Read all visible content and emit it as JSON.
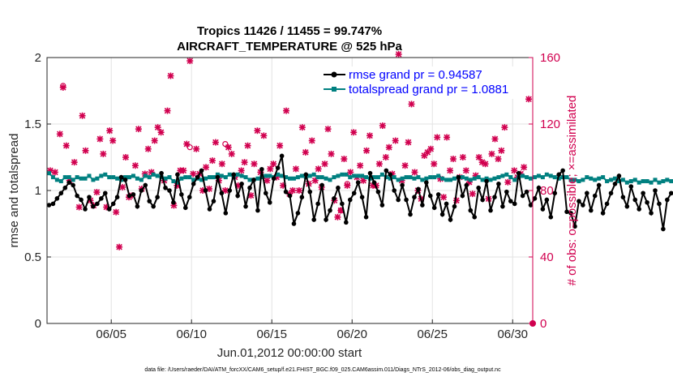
{
  "chart_data": {
    "type": "line",
    "title": "Tropics 11426 / 11455 = 99.747%",
    "subtitle": "AIRCRAFT_TEMPERATURE @ 525 hPa",
    "xlabel": "Jun.01,2012 00:00:00 start",
    "ylabel": "rmse and totalspread",
    "y2label": "# of obs: o=possible; ×=assimilated",
    "footnote": "data file: /Users/raeder/DAI/ATM_forcXX/CAM6_setup/f.e21.FHIST_BGC.f09_025.CAM6assim.011/Diags_NTrS_2012-06/obs_diag_output.nc",
    "xlim": [
      1.0,
      31.25
    ],
    "ylim": [
      0,
      2
    ],
    "y2lim": [
      0,
      160
    ],
    "x_ticks": [
      {
        "value": 5,
        "label": "06/05"
      },
      {
        "value": 10,
        "label": "06/10"
      },
      {
        "value": 15,
        "label": "06/15"
      },
      {
        "value": 20,
        "label": "06/20"
      },
      {
        "value": 25,
        "label": "06/25"
      },
      {
        "value": 30,
        "label": "06/30"
      }
    ],
    "y_ticks": [
      {
        "value": 0,
        "label": "0"
      },
      {
        "value": 0.5,
        "label": "0.5"
      },
      {
        "value": 1,
        "label": "1"
      },
      {
        "value": 1.5,
        "label": "1.5"
      },
      {
        "value": 2,
        "label": "2"
      }
    ],
    "y2_ticks": [
      {
        "value": 0,
        "label": "0"
      },
      {
        "value": 40,
        "label": "40"
      },
      {
        "value": 80,
        "label": "80"
      },
      {
        "value": 120,
        "label": "120"
      },
      {
        "value": 160,
        "label": "160"
      }
    ],
    "grid": true,
    "legend_position": "top-right",
    "x_start": 1.125,
    "x_step": 0.25,
    "series": [
      {
        "name": "rmse grand pr = 0.94587",
        "color": "#000000",
        "marker": "dot",
        "values": [
          0.89,
          0.9,
          0.94,
          0.98,
          1.02,
          1.06,
          1.04,
          0.96,
          0.93,
          0.86,
          0.95,
          0.88,
          0.9,
          0.94,
          0.98,
          0.86,
          0.9,
          0.95,
          1.1,
          1.08,
          0.96,
          0.97,
          0.88,
          1.0,
          1.04,
          0.92,
          0.88,
          0.95,
          1.13,
          1.02,
          1.0,
          0.91,
          1.12,
          0.97,
          0.87,
          0.95,
          1.05,
          1.1,
          1.15,
          1.0,
          0.86,
          0.92,
          1.1,
          0.98,
          0.83,
          1.0,
          1.12,
          0.96,
          1.05,
          0.88,
          1.02,
          1.08,
          0.85,
          1.16,
          0.98,
          0.91,
          1.09,
          1.17,
          1.26,
          0.99,
          0.96,
          0.75,
          0.83,
          0.95,
          1.12,
          0.99,
          0.78,
          0.9,
          1.04,
          0.78,
          0.85,
          0.94,
          1.02,
          0.9,
          0.76,
          0.93,
          0.98,
          1.06,
          0.95,
          0.8,
          1.13,
          1.06,
          0.99,
          0.89,
          1.15,
          1.12,
          1.0,
          0.93,
          1.04,
          0.93,
          0.82,
          0.95,
          1.01,
          0.89,
          1.06,
          0.96,
          0.87,
          0.97,
          0.82,
          0.9,
          0.78,
          0.88,
          1.1,
          0.96,
          1.04,
          0.85,
          0.8,
          1.02,
          0.93,
          1.07,
          0.85,
          0.95,
          1.05,
          0.88,
          0.99,
          0.92,
          0.9,
          1.13,
          0.96,
          0.99,
          0.89,
          0.94,
          1.02,
          0.86,
          0.93,
          0.8,
          0.98,
          1.12,
          1.15,
          0.84,
          0.83,
          0.73,
          0.92,
          0.89,
          0.98,
          0.85,
          0.96,
          1.04,
          0.83,
          0.9,
          0.98,
          1.05,
          1.11,
          0.95,
          0.88,
          1.03,
          0.93,
          0.86,
          0.98,
          0.91,
          0.83,
          1.0,
          0.9,
          0.71,
          0.93,
          0.98,
          0.97,
          0.9,
          1.0,
          0.89,
          0.98,
          0.93,
          0.85,
          0.93,
          0.92,
          0.96,
          0.89,
          1.05,
          0.97,
          0.85,
          0.79,
          0.91,
          0.98,
          0.97,
          0.99,
          0.85,
          0.75,
          0.7
        ]
      },
      {
        "name": "totalspread grand pr = 1.0881",
        "color": "#008080",
        "marker": "square",
        "values": [
          1.13,
          1.1,
          1.08,
          1.07,
          1.1,
          1.1,
          1.08,
          1.1,
          1.09,
          1.09,
          1.11,
          1.08,
          1.09,
          1.11,
          1.12,
          1.1,
          1.1,
          1.09,
          1.08,
          1.1,
          1.1,
          1.11,
          1.09,
          1.08,
          1.11,
          1.1,
          1.12,
          1.11,
          1.1,
          1.09,
          1.1,
          1.07,
          1.06,
          1.09,
          1.1,
          1.1,
          1.08,
          1.09,
          1.08,
          1.09,
          1.1,
          1.1,
          1.12,
          1.11,
          1.1,
          1.12,
          1.1,
          1.12,
          1.11,
          1.1,
          1.08,
          1.08,
          1.09,
          1.1,
          1.11,
          1.11,
          1.1,
          1.12,
          1.11,
          1.1,
          1.09,
          1.09,
          1.1,
          1.11,
          1.1,
          1.11,
          1.12,
          1.1,
          1.1,
          1.09,
          1.08,
          1.1,
          1.11,
          1.12,
          1.12,
          1.1,
          1.11,
          1.11,
          1.11,
          1.1,
          1.09,
          1.1,
          1.1,
          1.12,
          1.1,
          1.09,
          1.1,
          1.08,
          1.09,
          1.1,
          1.1,
          1.09,
          1.1,
          1.08,
          1.09,
          1.1,
          1.1,
          1.11,
          1.09,
          1.08,
          1.08,
          1.09,
          1.1,
          1.1,
          1.09,
          1.08,
          1.09,
          1.1,
          1.08,
          1.09,
          1.08,
          1.09,
          1.1,
          1.11,
          1.12,
          1.1,
          1.08,
          1.1,
          1.11,
          1.1,
          1.09,
          1.1,
          1.11,
          1.1,
          1.12,
          1.11,
          1.1,
          1.09,
          1.1,
          1.1,
          1.08,
          1.08,
          1.07,
          1.08,
          1.1,
          1.09,
          1.08,
          1.09,
          1.1,
          1.07,
          1.08,
          1.09,
          1.07,
          1.08,
          1.06,
          1.07,
          1.08,
          1.06,
          1.07,
          1.07,
          1.06,
          1.08,
          1.06,
          1.07,
          1.08,
          1.07,
          1.08,
          1.1,
          1.09,
          1.08,
          1.07,
          1.08,
          1.07,
          1.06,
          1.07,
          1.06,
          1.07,
          1.08,
          1.06,
          1.07,
          1.07,
          1.08,
          1.07,
          1.06,
          1.06,
          1.07,
          1.07,
          1.06
        ]
      }
    ],
    "obs_series": {
      "name": "# of obs",
      "color": "#d1004f",
      "axis": "right",
      "points": [
        [
          1.2,
          92
        ],
        [
          1.5,
          91
        ],
        [
          1.8,
          114
        ],
        [
          2.0,
          142
        ],
        [
          2.2,
          107
        ],
        [
          2.4,
          86
        ],
        [
          2.7,
          97
        ],
        [
          3.0,
          70
        ],
        [
          3.2,
          125
        ],
        [
          3.4,
          104
        ],
        [
          3.7,
          74
        ],
        [
          3.9,
          71
        ],
        [
          4.1,
          79
        ],
        [
          4.3,
          111
        ],
        [
          4.5,
          102
        ],
        [
          4.7,
          70
        ],
        [
          4.9,
          116
        ],
        [
          5.1,
          110
        ],
        [
          5.3,
          67
        ],
        [
          5.5,
          46
        ],
        [
          5.7,
          82
        ],
        [
          5.9,
          100
        ],
        [
          6.1,
          76
        ],
        [
          6.3,
          77
        ],
        [
          6.5,
          95
        ],
        [
          6.7,
          117
        ],
        [
          6.9,
          81
        ],
        [
          7.1,
          90
        ],
        [
          7.3,
          105
        ],
        [
          7.5,
          91
        ],
        [
          7.7,
          110
        ],
        [
          7.9,
          118
        ],
        [
          8.1,
          115
        ],
        [
          8.3,
          86
        ],
        [
          8.5,
          128
        ],
        [
          8.7,
          149
        ],
        [
          8.9,
          71
        ],
        [
          9.1,
          83
        ],
        [
          9.3,
          92
        ],
        [
          9.5,
          92
        ],
        [
          9.7,
          108
        ],
        [
          9.9,
          158
        ],
        [
          10.1,
          90
        ],
        [
          10.3,
          105
        ],
        [
          10.5,
          90
        ],
        [
          10.7,
          80
        ],
        [
          10.9,
          94
        ],
        [
          11.1,
          81
        ],
        [
          11.3,
          98
        ],
        [
          11.5,
          109
        ],
        [
          11.7,
          86
        ],
        [
          11.9,
          96
        ],
        [
          12.1,
          80
        ],
        [
          12.3,
          106
        ],
        [
          12.5,
          102
        ],
        [
          12.7,
          88
        ],
        [
          12.9,
          83
        ],
        [
          13.1,
          92
        ],
        [
          13.3,
          97
        ],
        [
          13.5,
          107
        ],
        [
          13.7,
          77
        ],
        [
          13.9,
          96
        ],
        [
          14.1,
          116
        ],
        [
          14.3,
          91
        ],
        [
          14.5,
          113
        ],
        [
          14.7,
          86
        ],
        [
          14.9,
          93
        ],
        [
          15.1,
          96
        ],
        [
          15.3,
          88
        ],
        [
          15.5,
          107
        ],
        [
          15.7,
          83
        ],
        [
          15.9,
          128
        ],
        [
          16.1,
          78
        ],
        [
          16.3,
          80
        ],
        [
          16.5,
          93
        ],
        [
          16.7,
          80
        ],
        [
          16.9,
          118
        ],
        [
          17.1,
          103
        ],
        [
          17.3,
          84
        ],
        [
          17.5,
          110
        ],
        [
          17.7,
          86
        ],
        [
          17.9,
          93
        ],
        [
          18.1,
          82
        ],
        [
          18.3,
          96
        ],
        [
          18.5,
          117
        ],
        [
          18.7,
          102
        ],
        [
          18.9,
          74
        ],
        [
          19.1,
          64
        ],
        [
          19.3,
          68
        ],
        [
          19.5,
          99
        ],
        [
          19.7,
          83
        ],
        [
          19.9,
          91
        ],
        [
          20.1,
          115
        ],
        [
          20.3,
          88
        ],
        [
          20.5,
          95
        ],
        [
          20.7,
          86
        ],
        [
          20.9,
          104
        ],
        [
          21.1,
          113
        ],
        [
          21.3,
          83
        ],
        [
          21.5,
          83
        ],
        [
          21.7,
          96
        ],
        [
          21.9,
          119
        ],
        [
          22.1,
          100
        ],
        [
          22.3,
          106
        ],
        [
          22.5,
          90
        ],
        [
          22.7,
          110
        ],
        [
          22.9,
          162
        ],
        [
          23.1,
          86
        ],
        [
          23.3,
          95
        ],
        [
          23.5,
          109
        ],
        [
          23.7,
          132
        ],
        [
          23.9,
          91
        ],
        [
          24.1,
          80
        ],
        [
          24.3,
          75
        ],
        [
          24.5,
          101
        ],
        [
          24.7,
          103
        ],
        [
          24.9,
          105
        ],
        [
          25.1,
          96
        ],
        [
          25.3,
          112
        ],
        [
          25.5,
          87
        ],
        [
          25.7,
          76
        ],
        [
          25.9,
          112
        ],
        [
          26.1,
          92
        ],
        [
          26.3,
          99
        ],
        [
          26.5,
          74
        ],
        [
          26.7,
          88
        ],
        [
          26.9,
          100
        ],
        [
          27.1,
          92
        ],
        [
          27.3,
          85
        ],
        [
          27.5,
          78
        ],
        [
          27.7,
          89
        ],
        [
          27.9,
          100
        ],
        [
          28.1,
          97
        ],
        [
          28.3,
          96
        ],
        [
          28.5,
          75
        ],
        [
          28.7,
          102
        ],
        [
          28.9,
          111
        ],
        [
          29.1,
          99
        ],
        [
          29.3,
          104
        ],
        [
          29.5,
          118
        ],
        [
          29.7,
          85
        ],
        [
          29.9,
          141
        ],
        [
          30.1,
          92
        ],
        [
          30.3,
          88
        ],
        [
          30.5,
          90
        ],
        [
          30.7,
          94
        ],
        [
          31.0,
          135
        ]
      ],
      "possible_points": [
        [
          2.0,
          143
        ],
        [
          9.9,
          106
        ],
        [
          12.1,
          108
        ],
        [
          19.3,
          68
        ],
        [
          19.7,
          84
        ]
      ],
      "end_value": 0
    }
  }
}
